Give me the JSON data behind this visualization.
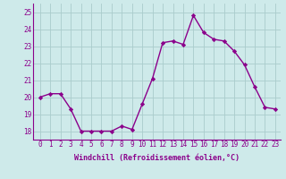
{
  "x": [
    0,
    1,
    2,
    3,
    4,
    5,
    6,
    7,
    8,
    9,
    10,
    11,
    12,
    13,
    14,
    15,
    16,
    17,
    18,
    19,
    20,
    21,
    22,
    23
  ],
  "y": [
    20.0,
    20.2,
    20.2,
    19.3,
    18.0,
    18.0,
    18.0,
    18.0,
    18.3,
    18.1,
    19.6,
    21.1,
    23.2,
    23.3,
    23.1,
    24.8,
    23.8,
    23.4,
    23.3,
    22.7,
    21.9,
    20.6,
    19.4,
    19.3
  ],
  "ylim": [
    17.5,
    25.5
  ],
  "yticks": [
    18,
    19,
    20,
    21,
    22,
    23,
    24,
    25
  ],
  "xticks": [
    0,
    1,
    2,
    3,
    4,
    5,
    6,
    7,
    8,
    9,
    10,
    11,
    12,
    13,
    14,
    15,
    16,
    17,
    18,
    19,
    20,
    21,
    22,
    23
  ],
  "xlabel": "Windchill (Refroidissement éolien,°C)",
  "line_color": "#8B008B",
  "marker": "D",
  "marker_size": 2.2,
  "bg_color": "#ceeaea",
  "grid_color": "#aacccc",
  "line_width": 1.0,
  "tick_fontsize": 5.5,
  "xlabel_fontsize": 6.0
}
